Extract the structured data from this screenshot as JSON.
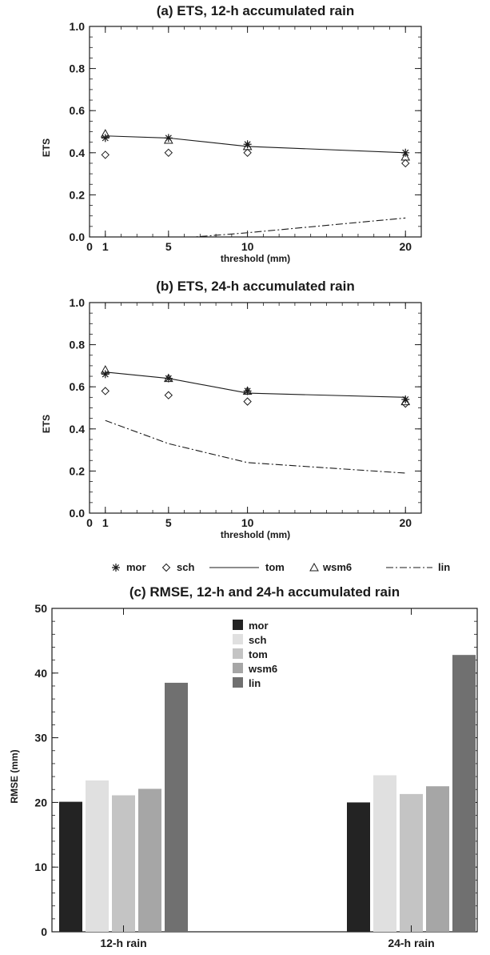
{
  "chart_data": [
    {
      "type": "line",
      "title": "(a) ETS, 12-h accumulated rain",
      "xlabel": "threshold (mm)",
      "ylabel": "ETS",
      "xlim": [
        0,
        21
      ],
      "ylim": [
        0.0,
        1.0
      ],
      "x_ticks": [
        "0",
        "1",
        "5",
        "10",
        "20"
      ],
      "y_ticks": [
        "0.0",
        "0.2",
        "0.4",
        "0.6",
        "0.8",
        "1.0"
      ],
      "x": [
        1,
        5,
        10,
        20
      ],
      "series": [
        {
          "name": "mor",
          "marker": "asterisk",
          "values": [
            0.47,
            0.47,
            0.44,
            0.4
          ]
        },
        {
          "name": "sch",
          "marker": "diamond",
          "values": [
            0.39,
            0.4,
            0.4,
            0.35
          ]
        },
        {
          "name": "tom",
          "line": "solid",
          "values": [
            0.48,
            0.47,
            0.43,
            0.4
          ]
        },
        {
          "name": "wsm6",
          "marker": "triangle",
          "values": [
            0.49,
            0.46,
            0.43,
            0.38
          ]
        },
        {
          "name": "lin",
          "line": "dashdot",
          "values": [
            -0.02,
            -0.01,
            0.02,
            0.09
          ]
        }
      ]
    },
    {
      "type": "line",
      "title": "(b) ETS, 24-h accumulated rain",
      "xlabel": "threshold (mm)",
      "ylabel": "ETS",
      "xlim": [
        0,
        21
      ],
      "ylim": [
        0.0,
        1.0
      ],
      "x_ticks": [
        "0",
        "1",
        "5",
        "10",
        "20"
      ],
      "y_ticks": [
        "0.0",
        "0.2",
        "0.4",
        "0.6",
        "0.8",
        "1.0"
      ],
      "x": [
        1,
        5,
        10,
        20
      ],
      "series": [
        {
          "name": "mor",
          "marker": "asterisk",
          "values": [
            0.66,
            0.64,
            0.58,
            0.54
          ]
        },
        {
          "name": "sch",
          "marker": "diamond",
          "values": [
            0.58,
            0.56,
            0.53,
            0.52
          ]
        },
        {
          "name": "tom",
          "line": "solid",
          "values": [
            0.67,
            0.64,
            0.57,
            0.55
          ]
        },
        {
          "name": "wsm6",
          "marker": "triangle",
          "values": [
            0.68,
            0.64,
            0.58,
            0.53
          ]
        },
        {
          "name": "lin",
          "line": "dashdot",
          "values": [
            0.44,
            0.33,
            0.24,
            0.19
          ]
        }
      ]
    },
    {
      "type": "bar",
      "title": "(c) RMSE, 12-h and 24-h accumulated rain",
      "xlabel": "",
      "ylabel": "RMSE (mm)",
      "ylim": [
        0,
        50
      ],
      "y_ticks": [
        "0",
        "10",
        "20",
        "30",
        "40",
        "50"
      ],
      "categories": [
        "12-h rain",
        "24-h rain"
      ],
      "legend_position": "top-center",
      "series": [
        {
          "name": "mor",
          "color": "#232323",
          "values": [
            20.1,
            20.0
          ]
        },
        {
          "name": "sch",
          "color": "#e0e0e0",
          "values": [
            23.4,
            24.2
          ]
        },
        {
          "name": "tom",
          "color": "#c4c4c4",
          "values": [
            21.1,
            21.3
          ]
        },
        {
          "name": "wsm6",
          "color": "#a6a6a6",
          "values": [
            22.1,
            22.5
          ]
        },
        {
          "name": "lin",
          "color": "#707070",
          "values": [
            38.5,
            42.8
          ]
        }
      ]
    }
  ],
  "line_legend": [
    "mor",
    "sch",
    "tom",
    "wsm6",
    "lin"
  ]
}
